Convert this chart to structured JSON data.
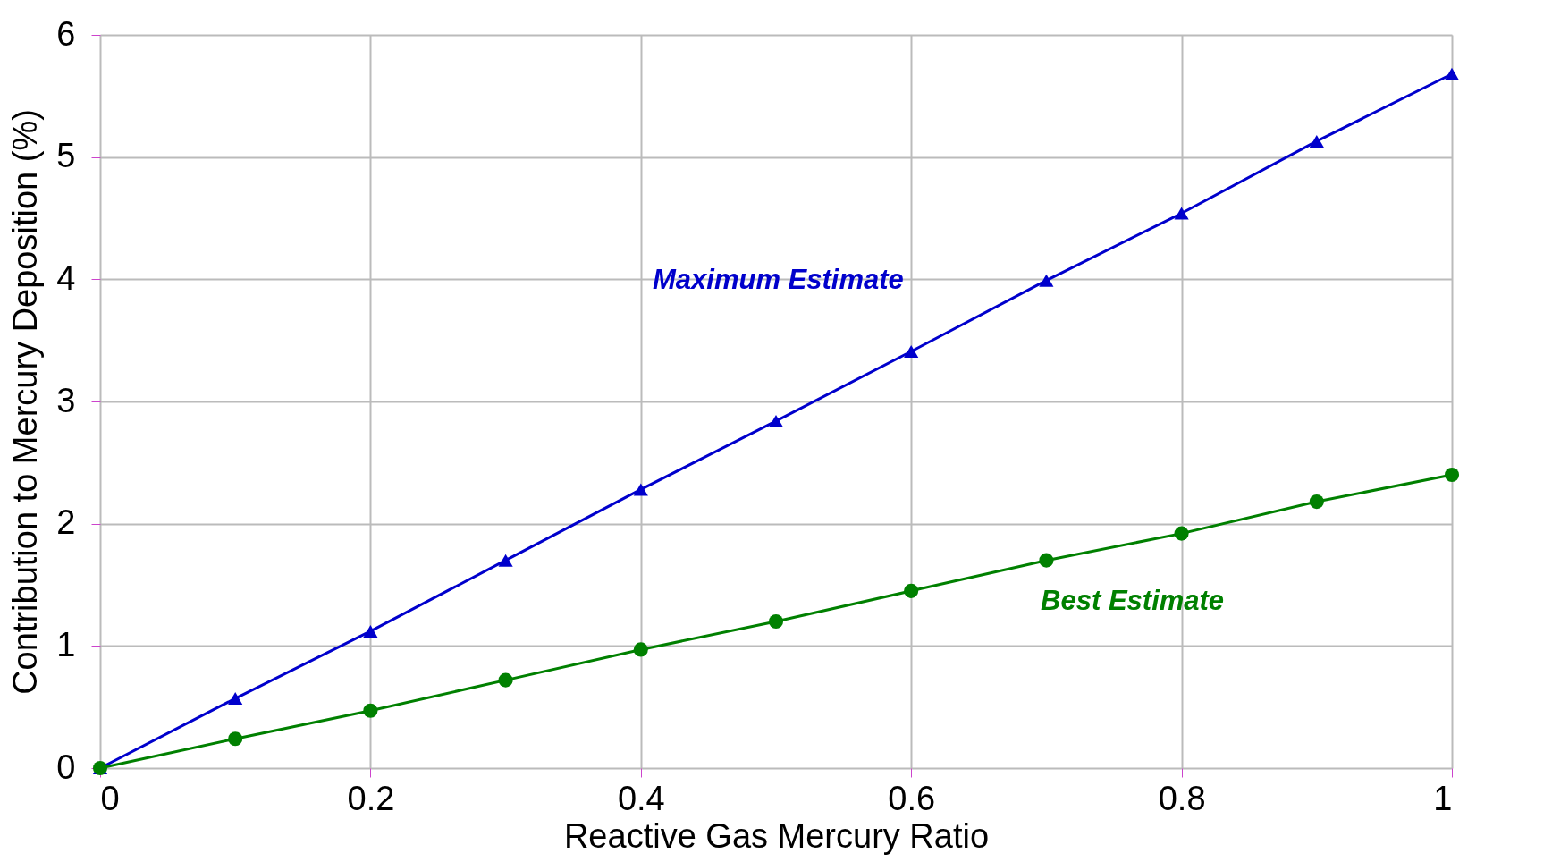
{
  "chart_data": {
    "type": "line",
    "xlabel": "Reactive Gas Mercury Ratio",
    "ylabel": "Contribution to Mercury Deposition (%)",
    "x": [
      0,
      0.1,
      0.2,
      0.3,
      0.4,
      0.5,
      0.6,
      0.7,
      0.8,
      0.9,
      1.0
    ],
    "series": [
      {
        "name": "Maximum Estimate",
        "color": "#0000cc",
        "marker": "triangle",
        "values": [
          0,
          0.57,
          1.12,
          1.7,
          2.28,
          2.84,
          3.41,
          3.99,
          4.54,
          5.13,
          5.68
        ]
      },
      {
        "name": "Best Estimate",
        "color": "#008000",
        "marker": "circle",
        "values": [
          0,
          0.24,
          0.47,
          0.72,
          0.97,
          1.2,
          1.45,
          1.7,
          1.92,
          2.18,
          2.4
        ]
      }
    ],
    "xlim": [
      0,
      1
    ],
    "xticks": [
      0,
      0.2,
      0.4,
      0.6,
      0.8,
      1
    ],
    "ylim": [
      0,
      6
    ],
    "yticks": [
      0,
      1,
      2,
      3,
      4,
      5,
      6
    ],
    "grid": true,
    "line_style": "solid"
  }
}
